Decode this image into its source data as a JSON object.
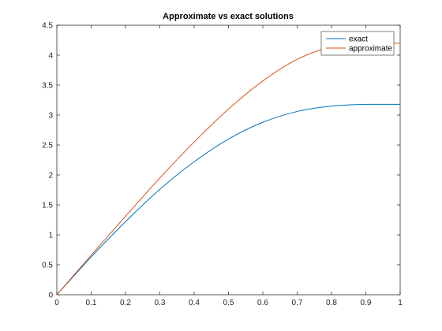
{
  "chart_data": {
    "type": "line",
    "title": "Approximate vs exact solutions",
    "xlabel": "",
    "ylabel": "",
    "xlim": [
      0,
      1
    ],
    "ylim": [
      0,
      4.5
    ],
    "xticks": [
      0,
      0.1,
      0.2,
      0.3,
      0.4,
      0.5,
      0.6,
      0.7,
      0.8,
      0.9,
      1
    ],
    "yticks": [
      0,
      0.5,
      1,
      1.5,
      2,
      2.5,
      3,
      3.5,
      4,
      4.5
    ],
    "xtick_labels": [
      "0",
      "0.1",
      "0.2",
      "0.3",
      "0.4",
      "0.5",
      "0.6",
      "0.7",
      "0.8",
      "0.9",
      "1"
    ],
    "ytick_labels": [
      "0",
      "0.5",
      "1",
      "1.5",
      "2",
      "2.5",
      "3",
      "3.5",
      "4",
      "4.5"
    ],
    "grid": false,
    "legend_position": "top-right",
    "x": [
      0,
      0.1,
      0.2,
      0.3,
      0.4,
      0.5,
      0.6,
      0.7,
      0.8,
      0.9,
      1
    ],
    "series": [
      {
        "name": "exact",
        "color": "#0072BD",
        "values": [
          0,
          0.63,
          1.22,
          1.76,
          2.22,
          2.6,
          2.88,
          3.06,
          3.15,
          3.18,
          3.18
        ]
      },
      {
        "name": "approximate",
        "color": "#D95319",
        "values": [
          0,
          0.66,
          1.31,
          1.95,
          2.55,
          3.1,
          3.57,
          3.93,
          4.14,
          4.2,
          4.2
        ]
      }
    ]
  }
}
